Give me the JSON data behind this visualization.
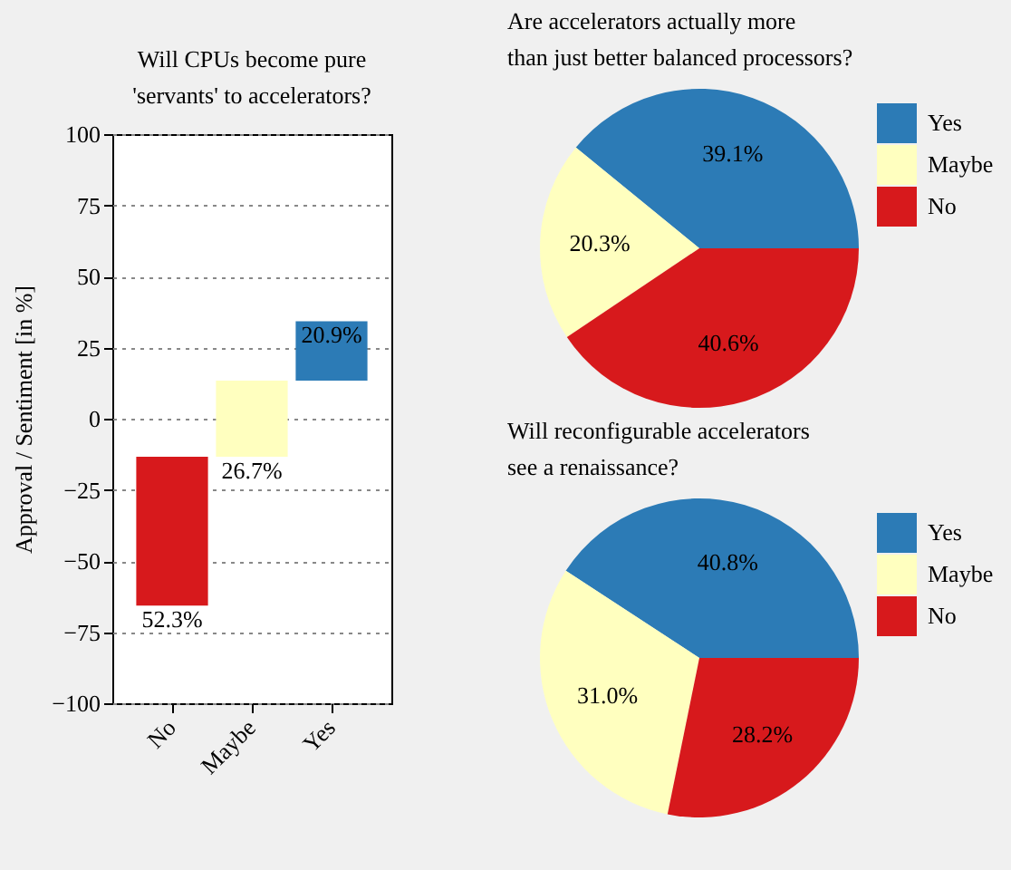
{
  "chart_data": [
    {
      "type": "bar",
      "title": "Will CPUs become pure\n'servants' to accelerators?",
      "ylabel": "Approval / Sentiment [in %]",
      "categories": [
        "No",
        "Maybe",
        "Yes"
      ],
      "values": [
        52.3,
        26.7,
        20.9
      ],
      "base": [
        -65.65,
        -13.35,
        13.35
      ],
      "colors": [
        "#d7191c",
        "#ffffbf",
        "#2c7bb6"
      ],
      "value_labels": [
        "52.3%",
        "26.7%",
        "20.9%"
      ],
      "ylim": [
        -100,
        100
      ],
      "yticks": [
        -100,
        -75,
        -50,
        -25,
        0,
        25,
        50,
        75,
        100
      ],
      "grid": "y"
    },
    {
      "type": "pie",
      "title": "Are accelerators actually more\nthan just better balanced processors?",
      "categories": [
        "Yes",
        "Maybe",
        "No"
      ],
      "values": [
        39.1,
        20.3,
        40.6
      ],
      "colors": [
        "#2c7bb6",
        "#ffffbf",
        "#d7191c"
      ],
      "value_labels": [
        "39.1%",
        "20.3%",
        "40.6%"
      ],
      "legend": "right"
    },
    {
      "type": "pie",
      "title": "Will reconfigurable accelerators\nsee a renaissance?",
      "categories": [
        "Yes",
        "Maybe",
        "No"
      ],
      "values": [
        40.8,
        31.0,
        28.2
      ],
      "colors": [
        "#2c7bb6",
        "#ffffbf",
        "#d7191c"
      ],
      "value_labels": [
        "40.8%",
        "31.0%",
        "28.2%"
      ],
      "legend": "right"
    }
  ]
}
